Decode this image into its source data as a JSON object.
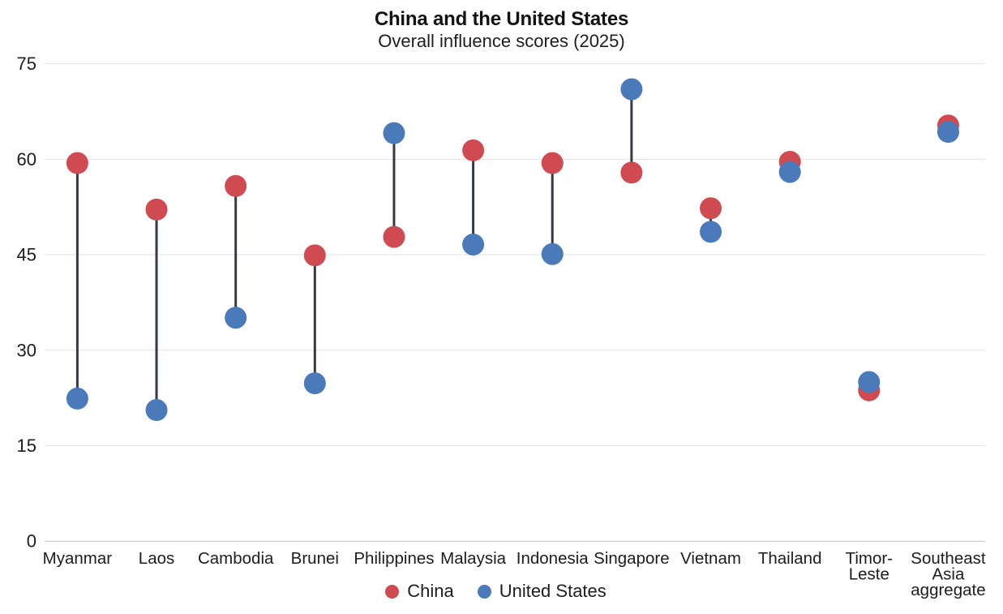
{
  "title": "China and the United States",
  "subtitle": "Overall influence scores (2025)",
  "colors": {
    "china": "#d04a52",
    "united_states": "#4a7ab9",
    "connector": "#343a46",
    "gridline": "#e2e2e2",
    "baseline": "#c2c2c2",
    "text": "#1d1d1d"
  },
  "legend": [
    {
      "label": "China",
      "color_key": "china"
    },
    {
      "label": "United States",
      "color_key": "united_states"
    }
  ],
  "chart_data": {
    "type": "scatter",
    "variant": "dumbbell",
    "title": "China and the United States",
    "subtitle": "Overall influence scores (2025)",
    "categories": [
      "Myanmar",
      "Laos",
      "Cambodia",
      "Brunei",
      "Philippines",
      "Malaysia",
      "Indonesia",
      "Singapore",
      "Vietnam",
      "Thailand",
      "Timor-Leste",
      "Southeast Asia aggregate"
    ],
    "category_tick_lines": [
      [
        "Myanmar"
      ],
      [
        "Laos"
      ],
      [
        "Cambodia"
      ],
      [
        "Brunei"
      ],
      [
        "Philippines"
      ],
      [
        "Malaysia"
      ],
      [
        "Indonesia"
      ],
      [
        "Singapore"
      ],
      [
        "Vietnam"
      ],
      [
        "Thailand"
      ],
      [
        "Timor-",
        "Leste"
      ],
      [
        "Southeast",
        "Asia",
        "aggregate"
      ]
    ],
    "series": [
      {
        "name": "China",
        "values": [
          59.4,
          52.1,
          55.8,
          44.9,
          47.8,
          61.4,
          59.4,
          57.9,
          52.3,
          59.6,
          23.7,
          65.3
        ]
      },
      {
        "name": "United States",
        "values": [
          22.4,
          20.6,
          35.1,
          24.8,
          64.1,
          46.6,
          45.1,
          71.0,
          48.6,
          58.0,
          25.0,
          64.3
        ]
      }
    ],
    "xlabel": "",
    "ylabel": "",
    "ylim": [
      0,
      75
    ],
    "yticks": [
      0,
      15,
      30,
      45,
      60,
      75
    ],
    "grid": true,
    "legend_position": "bottom"
  }
}
